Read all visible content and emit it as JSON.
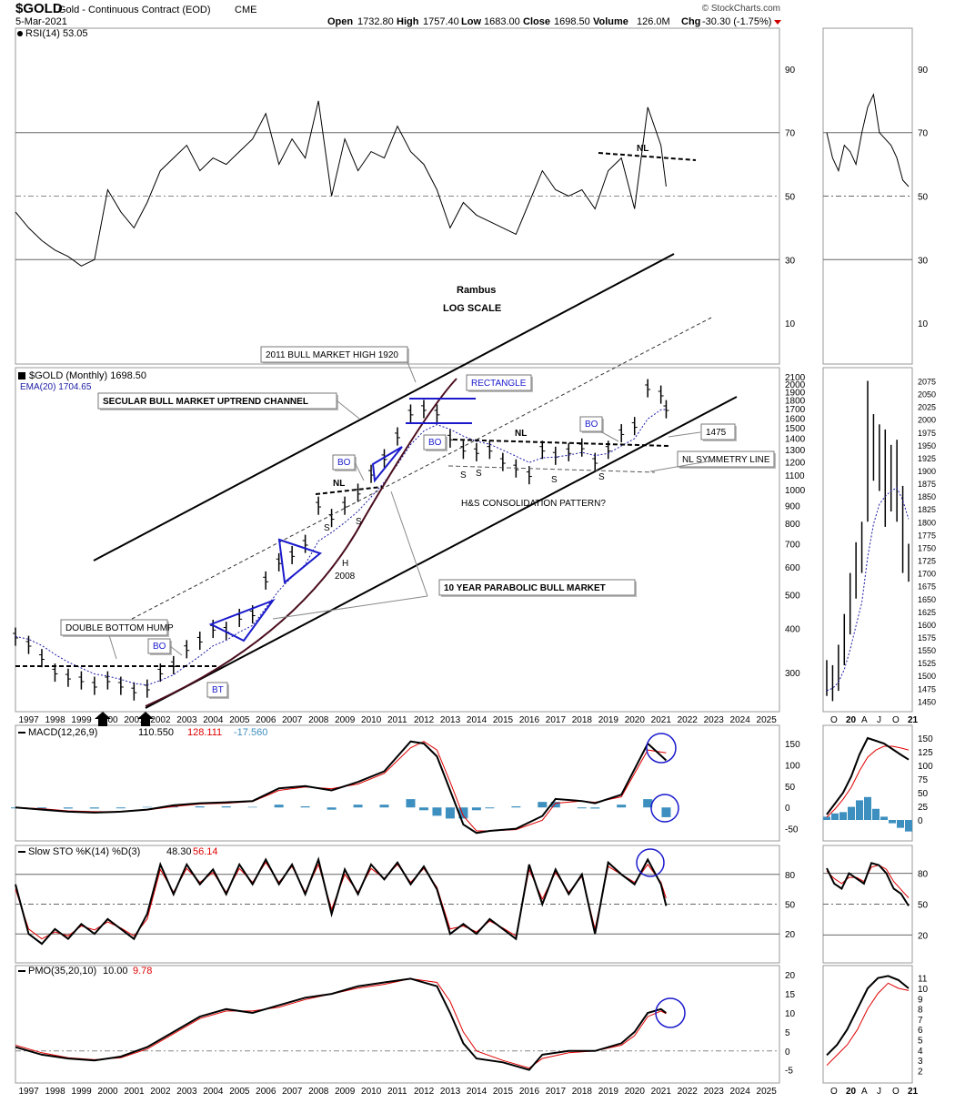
{
  "header": {
    "symbol": "$GOLD",
    "name": "Gold - Continuous Contract (EOD)",
    "exchange": "CME",
    "date": "5-Mar-2021",
    "ohlc": {
      "open_label": "Open",
      "open": "1732.80",
      "high_label": "High",
      "high": "1757.40",
      "low_label": "Low",
      "low": "1683.00",
      "close_label": "Close",
      "close": "1698.50",
      "volume_label": "Volume",
      "volume": "126.0M",
      "chg_label": "Chg",
      "chg": "-30.30 (-1.75%)"
    },
    "watermark": "© StockCharts.com"
  },
  "chart_data": [
    {
      "type": "line",
      "panel": "rsi-main",
      "legend": "RSI(14) 53.05",
      "ylim": [
        0,
        100
      ],
      "ticks": [
        10,
        30,
        50,
        70,
        90
      ],
      "reference_lines": [
        30,
        50,
        70
      ],
      "x": [
        1996.5,
        1997,
        1997.5,
        1998,
        1998.5,
        1999,
        1999.5,
        2000,
        2000.5,
        2001,
        2001.5,
        2002,
        2002.5,
        2003,
        2003.5,
        2004,
        2004.5,
        2005,
        2005.5,
        2006,
        2006.5,
        2007,
        2007.5,
        2008,
        2008.5,
        2009,
        2009.5,
        2010,
        2010.5,
        2011,
        2011.5,
        2012,
        2012.5,
        2013,
        2013.5,
        2014,
        2014.5,
        2015,
        2015.5,
        2016,
        2016.5,
        2017,
        2017.5,
        2018,
        2018.5,
        2019,
        2019.5,
        2020,
        2020.5,
        2021,
        2021.2
      ],
      "values": [
        45,
        40,
        36,
        33,
        31,
        28,
        30,
        52,
        45,
        40,
        48,
        58,
        62,
        66,
        58,
        62,
        60,
        64,
        68,
        76,
        60,
        68,
        62,
        80,
        50,
        68,
        58,
        64,
        62,
        72,
        64,
        60,
        52,
        40,
        48,
        44,
        42,
        40,
        38,
        48,
        58,
        52,
        50,
        52,
        46,
        58,
        62,
        46,
        78,
        66,
        53
      ],
      "annotations": [
        "NL",
        "Rambus",
        "LOG SCALE"
      ]
    },
    {
      "type": "bar",
      "panel": "price-main",
      "legend": "$GOLD (Monthly) 1698.50",
      "ema_legend": "EMA(20) 1704.65",
      "scale": "log",
      "ylim": [
        240,
        2150
      ],
      "ticks": [
        300,
        400,
        500,
        600,
        700,
        800,
        900,
        1000,
        1100,
        1200,
        1300,
        1400,
        1500,
        1600,
        1700,
        1800,
        1900,
        2000,
        2100
      ],
      "xlim": [
        1996.5,
        2025.5
      ],
      "x_ticks": [
        "1997",
        "1998",
        "1999",
        "2000",
        "2001",
        "2002",
        "2003",
        "2004",
        "2005",
        "2006",
        "2007",
        "2008",
        "2009",
        "2010",
        "2011",
        "2012",
        "2013",
        "2014",
        "2015",
        "2016",
        "2017",
        "2018",
        "2019",
        "2020",
        "2021",
        "2022",
        "2023",
        "2024",
        "2025"
      ],
      "x": [
        1996.5,
        1997,
        1997.5,
        1998,
        1998.5,
        1999,
        1999.5,
        2000,
        2000.5,
        2001,
        2001.5,
        2002,
        2002.5,
        2003,
        2003.5,
        2004,
        2004.5,
        2005,
        2005.5,
        2006,
        2006.5,
        2007,
        2007.5,
        2008,
        2008.5,
        2009,
        2009.5,
        2010,
        2010.5,
        2011,
        2011.5,
        2012,
        2012.5,
        2013,
        2013.5,
        2014,
        2014.5,
        2015,
        2015.5,
        2016,
        2016.5,
        2017,
        2017.5,
        2018,
        2018.5,
        2019,
        2019.5,
        2020,
        2020.5,
        2021,
        2021.2
      ],
      "values": [
        380,
        360,
        330,
        300,
        290,
        285,
        275,
        285,
        275,
        265,
        270,
        300,
        315,
        350,
        370,
        400,
        395,
        430,
        440,
        550,
        620,
        650,
        700,
        900,
        830,
        900,
        980,
        1110,
        1230,
        1420,
        1650,
        1700,
        1650,
        1400,
        1300,
        1280,
        1300,
        1200,
        1150,
        1100,
        1300,
        1250,
        1280,
        1320,
        1200,
        1300,
        1450,
        1520,
        1950,
        1870,
        1698.5
      ],
      "annotations": [
        "2011 BULL MARKET HIGH 1920",
        "SECULAR BULL MARKET UPTREND CHANNEL",
        "RECTANGLE",
        "BO",
        "NL",
        "S",
        "H",
        "2008",
        "H&S CONSOLIDATION PATTERN?",
        "1475",
        "NL SYMMETRY LINE",
        "10 YEAR PARABOLIC BULL MARKET",
        "DOUBLE BOTTOM HUMP",
        "BT"
      ]
    },
    {
      "type": "line",
      "panel": "macd-main",
      "legend_name": "MACD(12,26,9)",
      "legend_values": [
        "110.550",
        "128.111",
        "-17.560"
      ],
      "ylim": [
        -70,
        180
      ],
      "ticks": [
        -50,
        0,
        50,
        100,
        150
      ],
      "x": [
        1996.5,
        1997.5,
        1998.5,
        1999.5,
        2000.5,
        2001.5,
        2002.5,
        2003.5,
        2004.5,
        2005.5,
        2006.5,
        2007.5,
        2008.5,
        2009.5,
        2010.5,
        2011.5,
        2012,
        2012.5,
        2013,
        2013.5,
        2014,
        2014.5,
        2015.5,
        2016.5,
        2017,
        2018,
        2018.5,
        2019.5,
        2020.5,
        2021.2
      ],
      "series": [
        {
          "values": [
            0,
            -5,
            -10,
            -12,
            -10,
            -5,
            5,
            10,
            12,
            15,
            45,
            50,
            40,
            60,
            85,
            155,
            150,
            120,
            40,
            -40,
            -60,
            -55,
            -50,
            -20,
            20,
            15,
            10,
            30,
            150,
            110.55
          ]
        },
        {
          "values": [
            0,
            -3,
            -8,
            -10,
            -10,
            -6,
            2,
            8,
            10,
            14,
            40,
            48,
            44,
            55,
            80,
            140,
            155,
            135,
            60,
            -20,
            -55,
            -55,
            -52,
            -30,
            10,
            15,
            12,
            25,
            135,
            128.111
          ]
        }
      ]
    },
    {
      "type": "line",
      "panel": "sto-main",
      "legend_name": "Slow STO %K(14) %D(3)",
      "legend_values": [
        "48.30",
        "56.14"
      ],
      "ylim": [
        0,
        100
      ],
      "ticks": [
        20,
        50,
        80
      ],
      "reference_lines": [
        20,
        50,
        80
      ],
      "x": [
        1996.5,
        1997,
        1997.5,
        1998,
        1998.5,
        1999,
        1999.5,
        2000,
        2000.5,
        2001,
        2001.5,
        2002,
        2002.5,
        2003,
        2003.5,
        2004,
        2004.5,
        2005,
        2005.5,
        2006,
        2006.5,
        2007,
        2007.5,
        2008,
        2008.5,
        2009,
        2009.5,
        2010,
        2010.5,
        2011,
        2011.5,
        2012,
        2012.5,
        2013,
        2013.5,
        2014,
        2014.5,
        2015,
        2015.5,
        2016,
        2016.5,
        2017,
        2017.5,
        2018,
        2018.5,
        2019,
        2019.5,
        2020,
        2020.5,
        2021,
        2021.2
      ],
      "series": [
        {
          "values": [
            70,
            20,
            10,
            25,
            15,
            30,
            20,
            35,
            25,
            15,
            40,
            90,
            60,
            90,
            70,
            85,
            60,
            90,
            70,
            95,
            70,
            90,
            60,
            95,
            40,
            85,
            60,
            90,
            75,
            92,
            70,
            88,
            65,
            20,
            30,
            20,
            35,
            25,
            15,
            90,
            50,
            85,
            60,
            80,
            20,
            92,
            80,
            70,
            95,
            70,
            48.3
          ]
        },
        {
          "values": [
            65,
            25,
            15,
            22,
            18,
            28,
            24,
            32,
            26,
            18,
            35,
            85,
            62,
            86,
            72,
            82,
            62,
            86,
            72,
            92,
            72,
            88,
            62,
            90,
            45,
            80,
            62,
            86,
            76,
            90,
            72,
            86,
            67,
            25,
            28,
            22,
            33,
            26,
            18,
            85,
            55,
            82,
            62,
            78,
            25,
            88,
            80,
            72,
            90,
            72,
            56.14
          ]
        }
      ]
    },
    {
      "type": "line",
      "panel": "pmo-main",
      "legend_name": "PMO(35,20,10)",
      "legend_values": [
        "10.00",
        "9.78"
      ],
      "ylim": [
        -7,
        21
      ],
      "ticks": [
        -5,
        0,
        5,
        10,
        15,
        20
      ],
      "x": [
        1996.5,
        1997.5,
        1998.5,
        1999.5,
        2000.5,
        2001.5,
        2002.5,
        2003.5,
        2004.5,
        2005.5,
        2006.5,
        2007.5,
        2008.5,
        2009.5,
        2010.5,
        2011.5,
        2012.5,
        2013,
        2013.5,
        2014,
        2015,
        2016,
        2016.5,
        2017.5,
        2018.5,
        2019.5,
        2020,
        2020.5,
        2021,
        2021.2
      ],
      "series": [
        {
          "values": [
            1,
            -1,
            -2,
            -2.5,
            -1.5,
            1,
            5,
            9,
            11,
            10,
            12,
            14,
            15,
            17,
            18,
            19,
            17,
            10,
            2,
            -2,
            -3,
            -5,
            -1,
            0,
            0,
            2,
            5,
            10,
            11,
            10
          ]
        },
        {
          "values": [
            1.5,
            -0.5,
            -1.8,
            -2.3,
            -1.8,
            0.5,
            4.5,
            8.5,
            10.5,
            10.5,
            11.5,
            13.5,
            15,
            16.5,
            17.5,
            19,
            18,
            13,
            5,
            0,
            -2.5,
            -4.5,
            -2,
            -0.5,
            0,
            1.5,
            4,
            9,
            10.5,
            9.78
          ]
        }
      ]
    },
    {
      "type": "line",
      "panel": "rsi-side",
      "ylim": [
        0,
        100
      ],
      "ticks": [
        10,
        30,
        50,
        70,
        90
      ],
      "values": [
        70,
        62,
        58,
        66,
        64,
        60,
        70,
        78,
        82,
        70,
        68,
        66,
        62,
        55,
        53
      ]
    },
    {
      "type": "bar",
      "panel": "price-side",
      "ylim": [
        1440,
        2090
      ],
      "ticks": [
        1450,
        1475,
        1500,
        1525,
        1550,
        1575,
        1600,
        1625,
        1650,
        1675,
        1700,
        1725,
        1750,
        1775,
        1800,
        1825,
        1850,
        1875,
        1900,
        1925,
        1950,
        1975,
        2000,
        2025,
        2050,
        2075
      ],
      "x_ticks": [
        "O",
        "20",
        "A",
        "J",
        "O",
        "21"
      ],
      "values": [
        {
          "low": 1460,
          "high": 1530
        },
        {
          "low": 1450,
          "high": 1520
        },
        {
          "low": 1470,
          "high": 1560
        },
        {
          "low": 1520,
          "high": 1620
        },
        {
          "low": 1580,
          "high": 1700
        },
        {
          "low": 1650,
          "high": 1760
        },
        {
          "low": 1700,
          "high": 1800
        },
        {
          "low": 1800,
          "high": 2075
        },
        {
          "low": 1880,
          "high": 2010
        },
        {
          "low": 1860,
          "high": 1990
        },
        {
          "low": 1790,
          "high": 1980
        },
        {
          "low": 1820,
          "high": 1950
        },
        {
          "low": 1800,
          "high": 1960
        },
        {
          "low": 1700,
          "high": 1870
        },
        {
          "low": 1683,
          "high": 1757
        }
      ]
    },
    {
      "type": "line",
      "panel": "macd-side",
      "ticks": [
        0,
        25,
        50,
        75,
        100,
        125,
        150
      ],
      "series": [
        {
          "values": [
            10,
            30,
            50,
            80,
            120,
            150,
            145,
            140,
            130,
            120,
            110.55
          ]
        },
        {
          "values": [
            5,
            20,
            38,
            60,
            90,
            115,
            128,
            135,
            135,
            132,
            128.111
          ]
        }
      ]
    },
    {
      "type": "line",
      "panel": "sto-side",
      "ticks": [
        20,
        50,
        80
      ],
      "series": [
        {
          "values": [
            85,
            70,
            65,
            80,
            75,
            70,
            90,
            88,
            80,
            65,
            60,
            48.3
          ]
        },
        {
          "values": [
            82,
            75,
            70,
            76,
            76,
            72,
            86,
            88,
            84,
            72,
            64,
            56.14
          ]
        }
      ]
    },
    {
      "type": "line",
      "panel": "pmo-side",
      "ticks": [
        2,
        3,
        4,
        5,
        6,
        7,
        8,
        9,
        10,
        11
      ],
      "series": [
        {
          "values": [
            3.5,
            4.5,
            6,
            8,
            10,
            11,
            11.2,
            10.8,
            10
          ]
        },
        {
          "values": [
            2.5,
            3.5,
            4.5,
            6,
            8,
            9.5,
            10.5,
            10,
            9.78
          ]
        }
      ]
    }
  ]
}
